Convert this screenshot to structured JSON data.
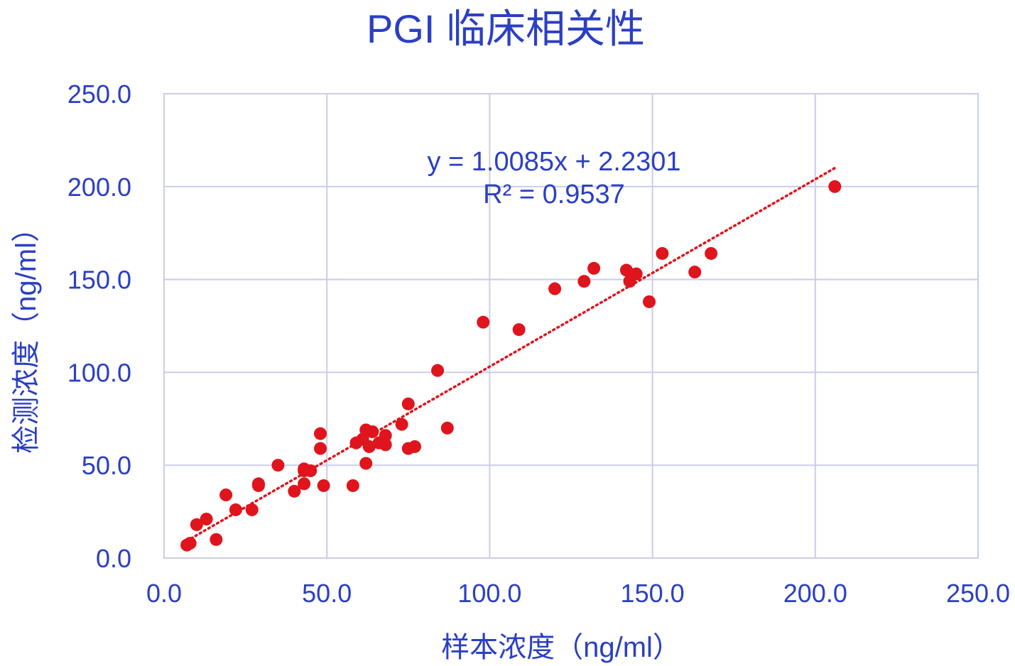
{
  "chart_data": {
    "type": "scatter",
    "title": "PGI 临床相关性",
    "xlabel": "样本浓度（ng/ml）",
    "ylabel": "检测浓度（ng/ml）",
    "xlim": [
      0,
      250
    ],
    "ylim": [
      0,
      250
    ],
    "x_ticks": [
      "0.0",
      "50.0",
      "100.0",
      "150.0",
      "200.0",
      "250.0"
    ],
    "y_ticks": [
      "0.0",
      "50.0",
      "100.0",
      "150.0",
      "200.0",
      "250.0"
    ],
    "grid": true,
    "marker_color": "#e0141c",
    "text_color": "#2b3fc4",
    "grid_color": "#c9cde8",
    "trendline": {
      "slope": 1.0085,
      "intercept": 2.2301,
      "x_range": [
        7,
        206
      ],
      "style": "dotted",
      "color": "#e0141c",
      "equation": "y = 1.0085x + 2.2301",
      "r_squared": "R² = 0.9537"
    },
    "series": [
      {
        "points": [
          [
            7,
            7
          ],
          [
            8,
            8
          ],
          [
            10,
            18
          ],
          [
            13,
            21
          ],
          [
            16,
            10
          ],
          [
            19,
            34
          ],
          [
            22,
            26
          ],
          [
            27,
            26
          ],
          [
            29,
            39
          ],
          [
            29,
            40
          ],
          [
            35,
            50
          ],
          [
            40,
            36
          ],
          [
            43,
            40
          ],
          [
            43,
            47
          ],
          [
            43,
            48
          ],
          [
            45,
            47
          ],
          [
            48,
            67
          ],
          [
            48,
            59
          ],
          [
            49,
            39
          ],
          [
            58,
            39
          ],
          [
            59,
            62
          ],
          [
            61,
            64
          ],
          [
            62,
            51
          ],
          [
            62,
            69
          ],
          [
            63,
            60
          ],
          [
            64,
            68
          ],
          [
            66,
            62
          ],
          [
            68,
            66
          ],
          [
            68,
            61
          ],
          [
            73,
            72
          ],
          [
            75,
            83
          ],
          [
            75,
            59
          ],
          [
            77,
            60
          ],
          [
            84,
            101
          ],
          [
            87,
            70
          ],
          [
            98,
            127
          ],
          [
            109,
            123
          ],
          [
            120,
            145
          ],
          [
            129,
            149
          ],
          [
            132,
            156
          ],
          [
            142,
            155
          ],
          [
            143,
            149
          ],
          [
            145,
            153
          ],
          [
            149,
            138
          ],
          [
            153,
            164
          ],
          [
            163,
            154
          ],
          [
            168,
            164
          ],
          [
            206,
            200
          ]
        ]
      }
    ]
  }
}
